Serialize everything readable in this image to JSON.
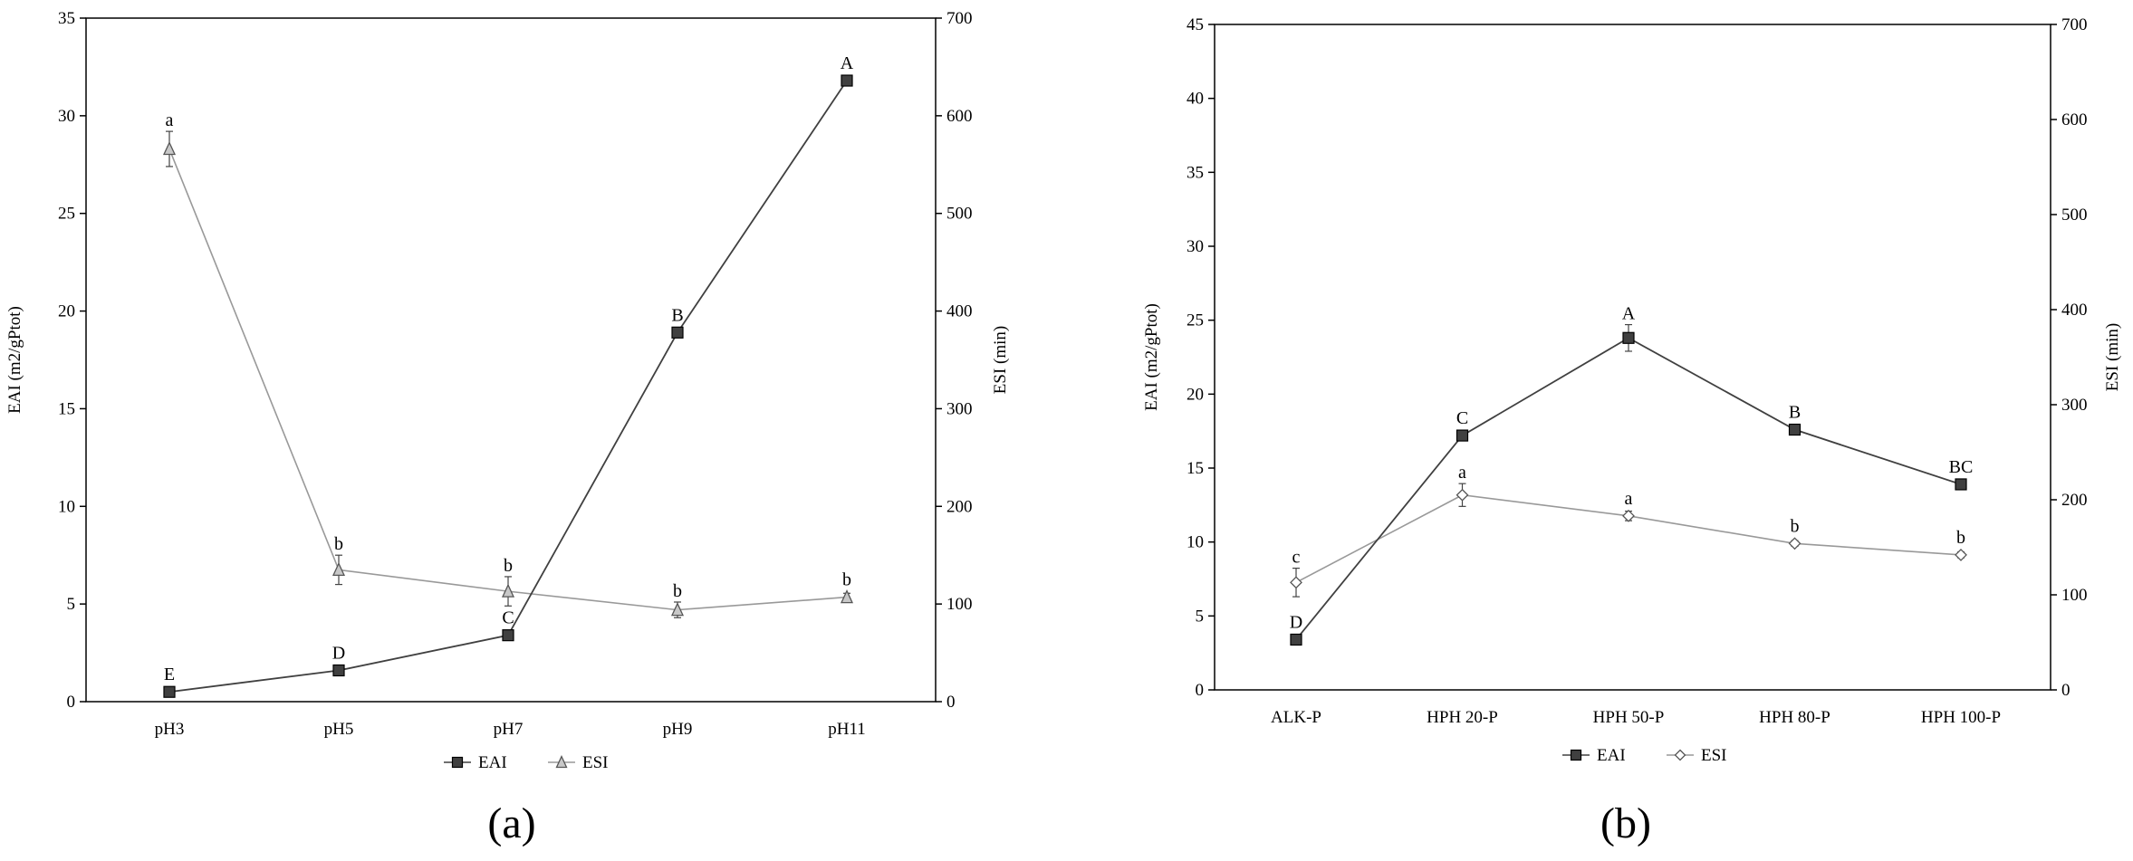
{
  "chart_data": [
    {
      "type": "line",
      "categories": [
        "pH3",
        "pH5",
        "pH7",
        "pH9",
        "pH11"
      ],
      "ylabel": "EAI (m2/gPtot)",
      "y2label": "ESI (min)",
      "ylim": [
        0,
        35
      ],
      "y2lim": [
        0,
        700
      ],
      "yticks": [
        "0",
        "5",
        "10",
        "15",
        "20",
        "25",
        "30",
        "35"
      ],
      "y2ticks": [
        "0",
        "100",
        "200",
        "300",
        "400",
        "500",
        "600",
        "700"
      ],
      "grid": false,
      "legend_position": "bottom",
      "caption": "(a)",
      "series": [
        {
          "name": "EAI",
          "axis": "left",
          "marker": "square",
          "color": "#404040",
          "values": [
            0.5,
            1.6,
            3.4,
            18.9,
            31.8
          ],
          "errors": [
            0.1,
            0.15,
            0.2,
            0.2,
            0.2
          ],
          "labels": [
            "E",
            "D",
            "C",
            "B",
            "A"
          ]
        },
        {
          "name": "ESI",
          "axis": "right",
          "marker": "triangle",
          "color": "#999999",
          "values": [
            566,
            135,
            113,
            94,
            107
          ],
          "errors": [
            18,
            15,
            15,
            8,
            4
          ],
          "labels": [
            "a",
            "b",
            "b",
            "b",
            "b"
          ]
        }
      ]
    },
    {
      "type": "line",
      "categories": [
        "ALK-P",
        "HPH 20-P",
        "HPH 50-P",
        "HPH 80-P",
        "HPH 100-P"
      ],
      "ylabel": "EAI (m2/gPtot)",
      "y2label": "ESI (min)",
      "ylim": [
        0,
        45
      ],
      "y2lim": [
        0,
        700
      ],
      "yticks": [
        "0",
        "5",
        "10",
        "15",
        "20",
        "25",
        "30",
        "35",
        "40",
        "45"
      ],
      "y2ticks": [
        "0",
        "100",
        "200",
        "300",
        "400",
        "500",
        "600",
        "700"
      ],
      "grid": false,
      "legend_position": "bottom",
      "caption": "(b)",
      "series": [
        {
          "name": "EAI",
          "axis": "left",
          "marker": "square",
          "color": "#404040",
          "values": [
            3.4,
            17.2,
            23.8,
            17.6,
            13.9
          ],
          "errors": [
            0.2,
            0.3,
            0.9,
            0.3,
            0.3
          ],
          "labels": [
            "D",
            "C",
            "A",
            "B",
            "BC"
          ]
        },
        {
          "name": "ESI",
          "axis": "right",
          "marker": "diamond",
          "color": "#999999",
          "values": [
            113,
            205,
            183,
            154,
            142
          ],
          "errors": [
            15,
            12,
            5,
            3,
            3
          ],
          "labels": [
            "c",
            "a",
            "a",
            "b",
            "b"
          ]
        }
      ]
    }
  ]
}
